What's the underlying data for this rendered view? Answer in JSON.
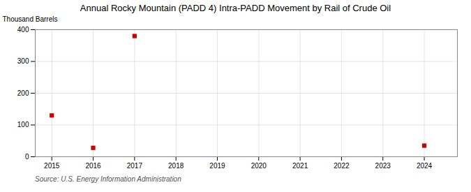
{
  "chart_data": {
    "type": "scatter",
    "title": "Annual Rocky Mountain (PADD 4) Intra-PADD Movement by Rail of Crude Oil",
    "ylabel": "Thousand Barrels",
    "source": "Source: U.S. Energy Information Administration",
    "x": [
      2015,
      2016,
      2017,
      2024
    ],
    "values": [
      130,
      28,
      380,
      35
    ],
    "color": "#cc0000",
    "marker": "square",
    "xlim": [
      2014.6,
      2024.8
    ],
    "xticks": [
      2015,
      2016,
      2017,
      2018,
      2019,
      2020,
      2021,
      2022,
      2023,
      2024
    ],
    "ylim": [
      0,
      400
    ],
    "yticks": [
      0,
      100,
      200,
      300,
      400
    ],
    "grid": true
  }
}
